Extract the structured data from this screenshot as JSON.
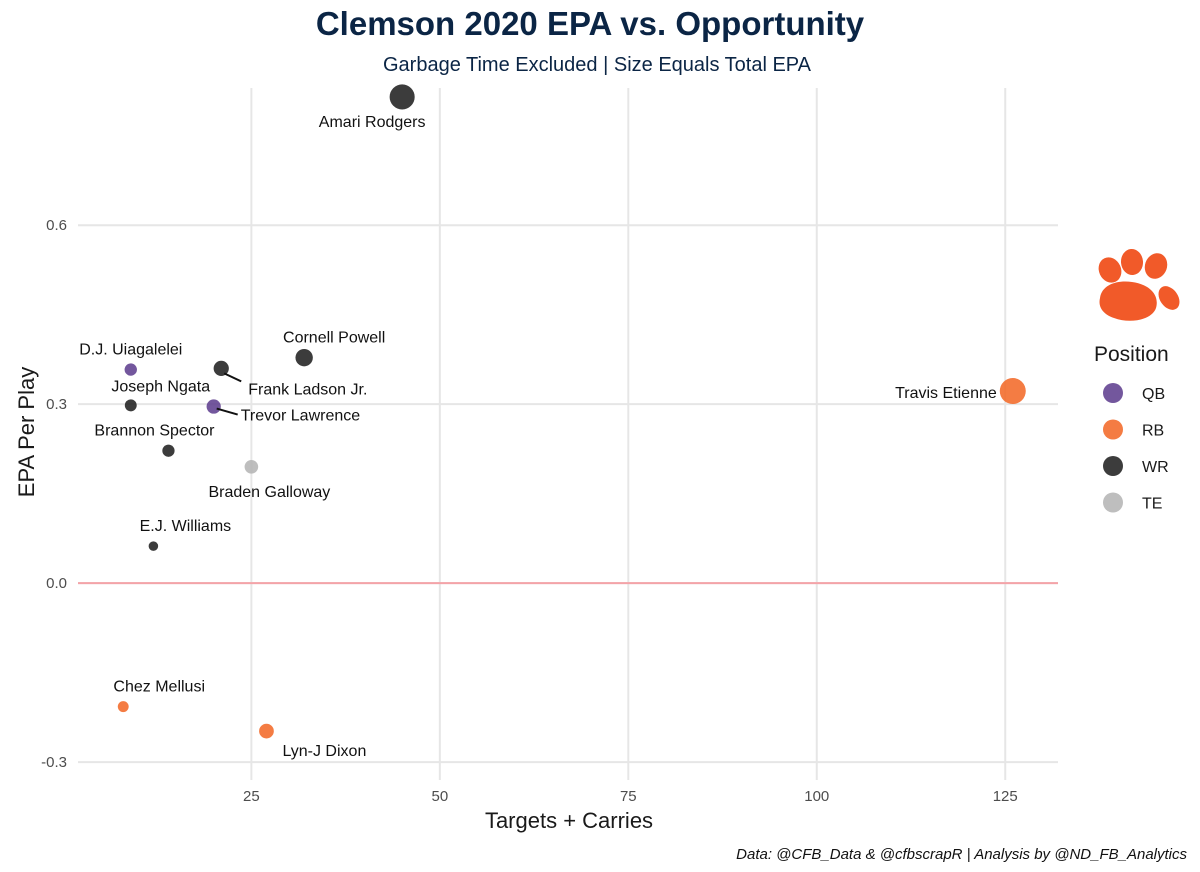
{
  "chart_data": {
    "type": "scatter",
    "title": "Clemson 2020 EPA vs. Opportunity",
    "subtitle": "Garbage Time Excluded | Size Equals Total EPA",
    "xlabel": "Targets + Carries",
    "ylabel": "EPA Per Play",
    "caption": "Data: @CFB_Data & @cfbscrapR | Analysis by @ND_FB_Analytics",
    "xlim": [
      2,
      132
    ],
    "ylim": [
      -0.33,
      0.83
    ],
    "x_ticks": [
      25,
      50,
      75,
      100,
      125
    ],
    "x_tick_labels": [
      "25",
      "50",
      "75",
      "100",
      "125"
    ],
    "y_ticks": [
      -0.3,
      0.0,
      0.3,
      0.6
    ],
    "y_tick_labels": [
      "-0.3",
      "0.0",
      "0.3",
      "0.6"
    ],
    "reference_line_y": 0.0,
    "reference_line_color": "#f4a3a8",
    "grid": true,
    "legend_title": "Position",
    "legend_position": "right",
    "legend": [
      {
        "label": "QB",
        "color": "#5b3a8c"
      },
      {
        "label": "RB",
        "color": "#f26522"
      },
      {
        "label": "WR",
        "color": "#1a1a1a"
      },
      {
        "label": "TE",
        "color": "#b3b3b3"
      }
    ],
    "logo": "clemson-tiger-paw",
    "logo_color": "#f15a29",
    "points": [
      {
        "name": "Amari Rodgers",
        "position": "WR",
        "x": 45,
        "y": 0.815,
        "total_epa": 36.7
      },
      {
        "name": "Cornell Powell",
        "position": "WR",
        "x": 32,
        "y": 0.378,
        "total_epa": 12.1
      },
      {
        "name": "D.J. Uiagalelei",
        "position": "QB",
        "x": 9,
        "y": 0.358,
        "total_epa": 3.2
      },
      {
        "name": "Frank Ladson Jr.",
        "position": "WR",
        "x": 21,
        "y": 0.36,
        "total_epa": 7.6
      },
      {
        "name": "Joseph Ngata",
        "position": "WR",
        "x": 9,
        "y": 0.298,
        "total_epa": 2.7
      },
      {
        "name": "Trevor Lawrence",
        "position": "QB",
        "x": 20,
        "y": 0.296,
        "total_epa": 5.9
      },
      {
        "name": "Travis Etienne",
        "position": "RB",
        "x": 126,
        "y": 0.322,
        "total_epa": 40.6
      },
      {
        "name": "Brannon Spector",
        "position": "WR",
        "x": 14,
        "y": 0.222,
        "total_epa": 3.1
      },
      {
        "name": "Braden Galloway",
        "position": "TE",
        "x": 25,
        "y": 0.195,
        "total_epa": 4.9
      },
      {
        "name": "E.J. Williams",
        "position": "WR",
        "x": 12,
        "y": 0.062,
        "total_epa": 0.7
      },
      {
        "name": "Chez Mellusi",
        "position": "RB",
        "x": 8,
        "y": -0.207,
        "total_epa": -1.7
      },
      {
        "name": "Lyn-J Dixon",
        "position": "RB",
        "x": 27,
        "y": -0.248,
        "total_epa": -6.7
      }
    ]
  }
}
